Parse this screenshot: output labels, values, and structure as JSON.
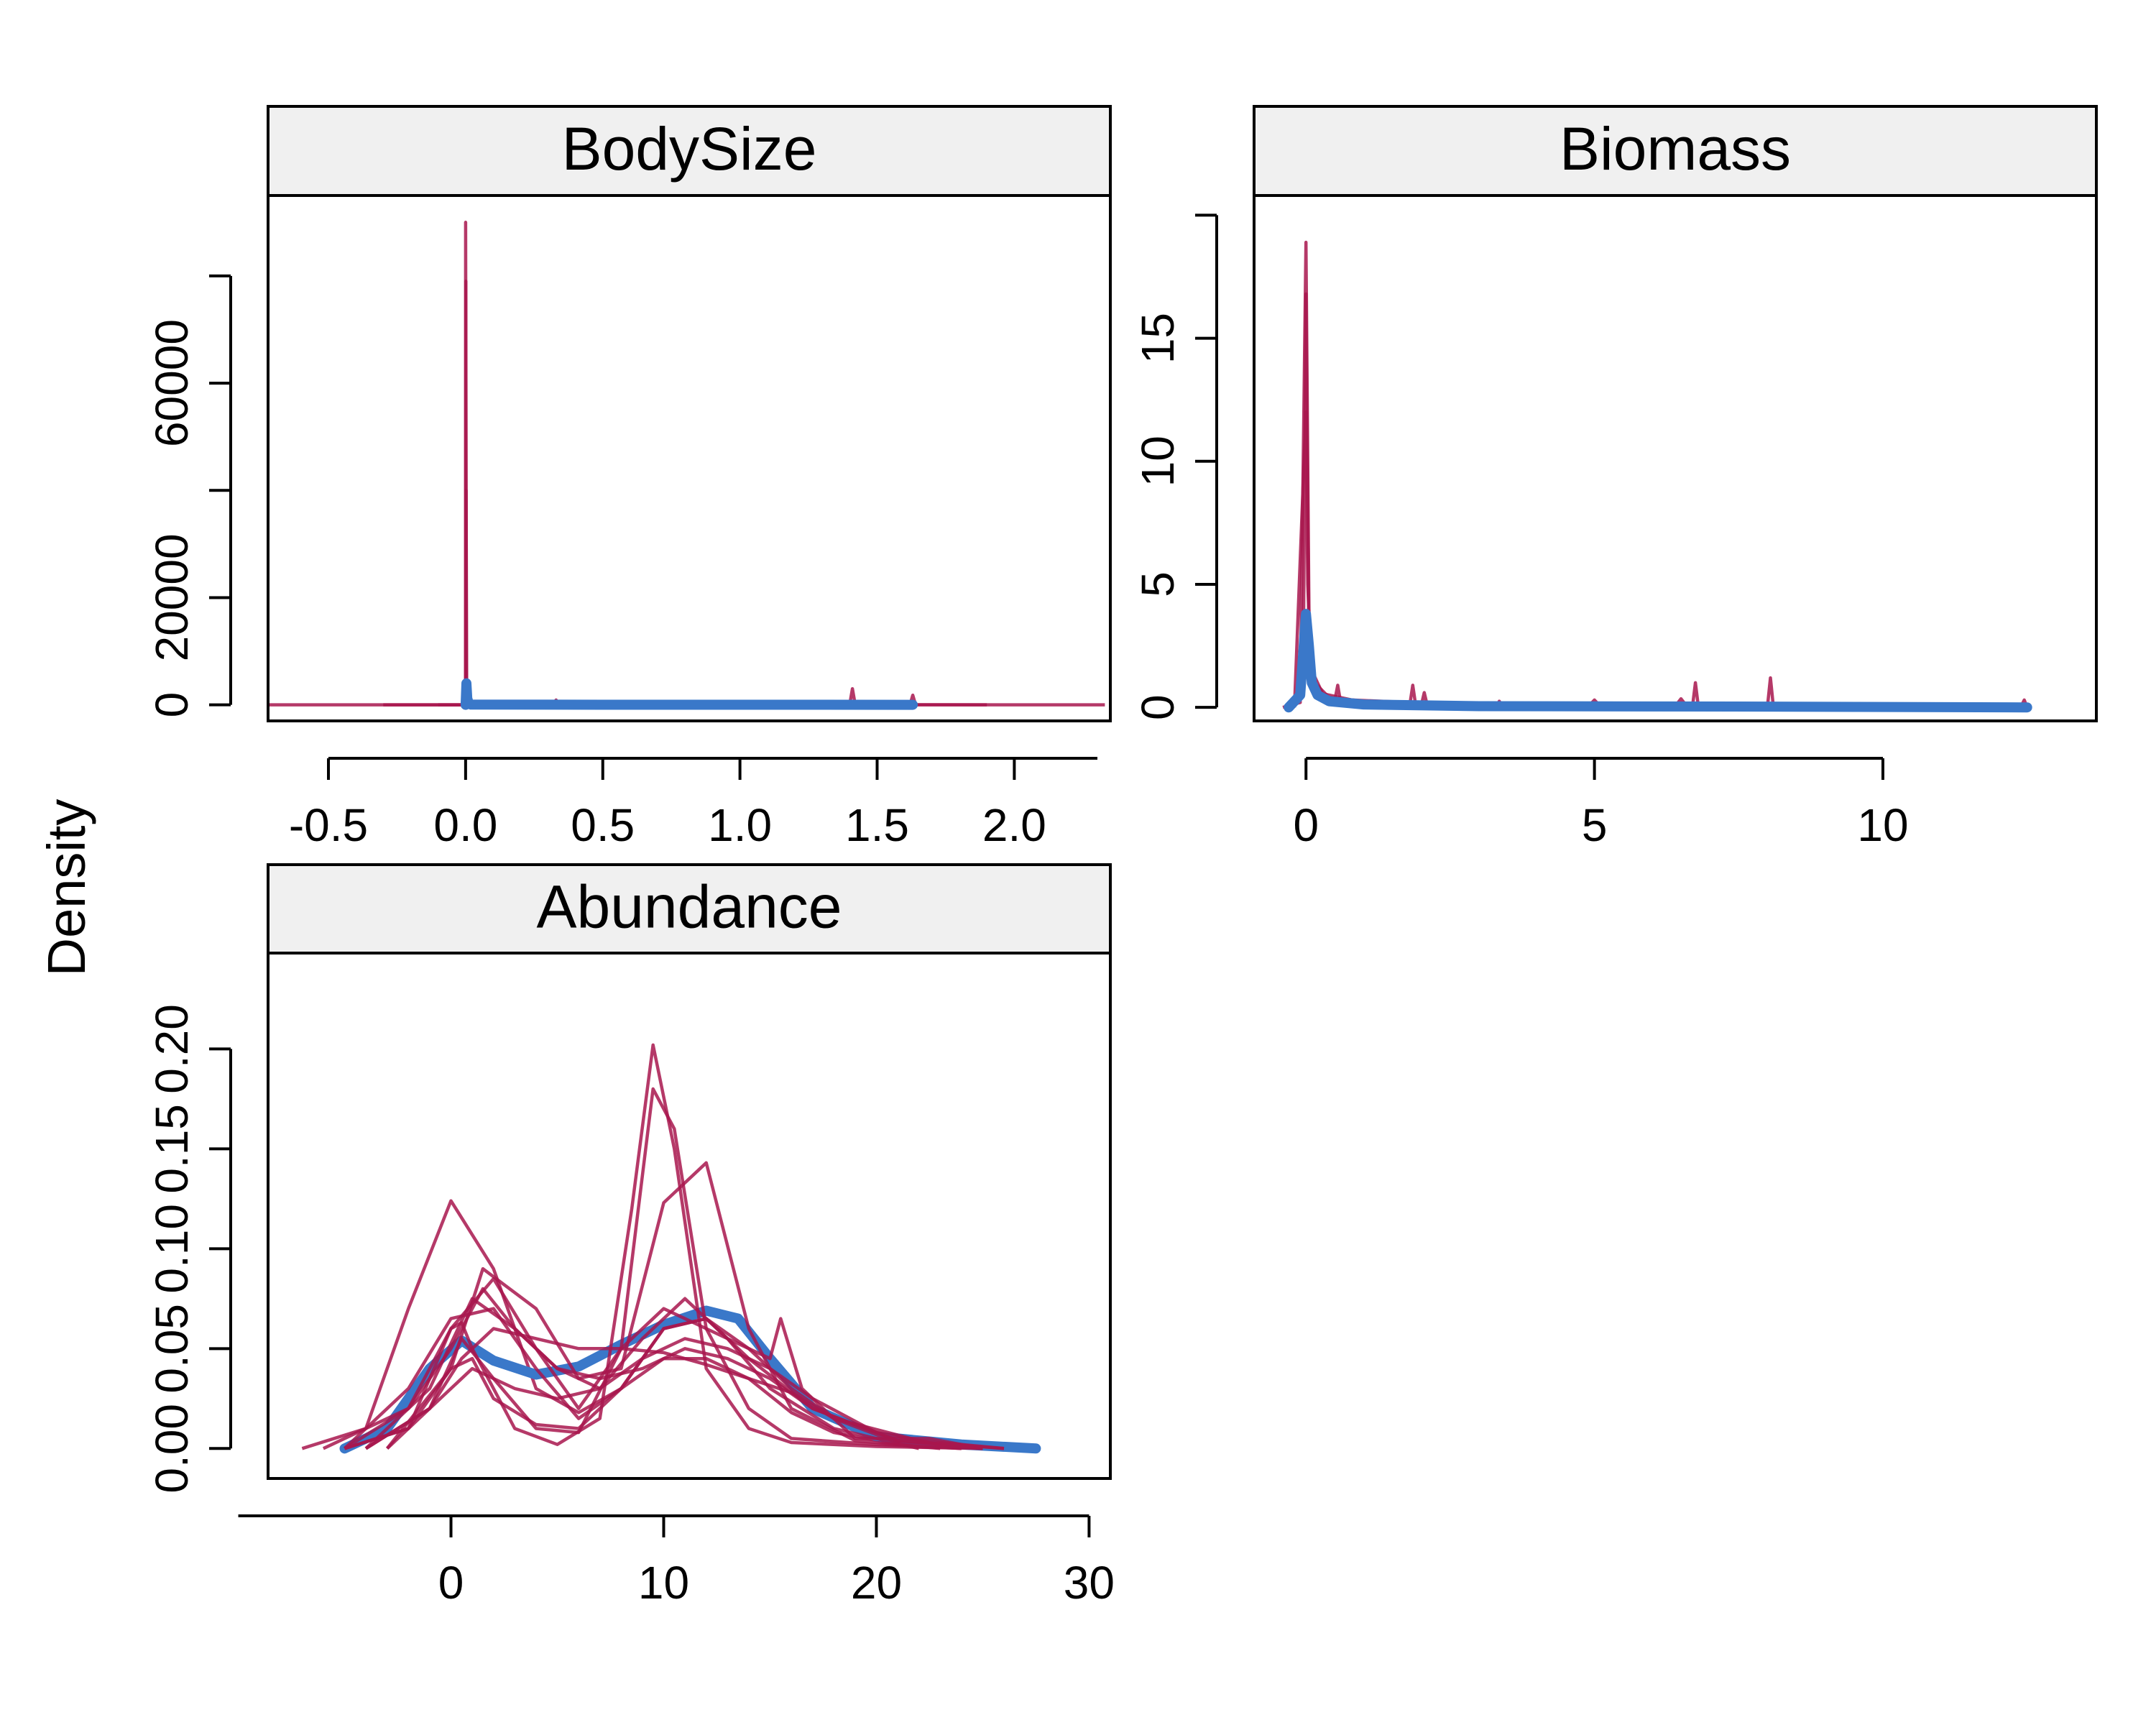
{
  "ylabel": "Density",
  "colors": {
    "observed": "#3a78c9",
    "replicated": "#a8164e",
    "strip": "#f0f0f0"
  },
  "chart_data": [
    {
      "type": "line",
      "title": "BodySize",
      "xlim": [
        -0.72,
        2.35
      ],
      "ylim": [
        -3000,
        95000
      ],
      "xticks": [
        -0.5,
        0.0,
        0.5,
        1.0,
        1.5,
        2.0
      ],
      "xtick_labels": [
        "-0.5",
        "0.0",
        "0.5",
        "1.0",
        "1.5",
        "2.0"
      ],
      "yticks": [
        0,
        20000,
        40000,
        60000,
        80000
      ],
      "ytick_labels": [
        "0",
        "20000",
        "",
        "60000",
        ""
      ],
      "observed": {
        "x": [
          0.0,
          0.003,
          0.006,
          0.012,
          0.02,
          0.5,
          1.0,
          1.63
        ],
        "y": [
          0,
          4000,
          1200,
          200,
          40,
          20,
          15,
          0
        ]
      },
      "replicates": [
        {
          "x": [
            -0.72,
            -0.3,
            0.0,
            0.0,
            0.003,
            0.006,
            0.02,
            0.5,
            1.4,
            1.41,
            1.42,
            2.0,
            2.33
          ],
          "y": [
            0,
            0,
            0,
            90000,
            500,
            60,
            30,
            20,
            10,
            3000,
            10,
            0,
            0
          ]
        },
        {
          "x": [
            -0.3,
            0.0,
            0.001,
            0.002,
            0.01,
            1.62,
            1.63,
            1.64,
            1.9
          ],
          "y": [
            0,
            0,
            79000,
            300,
            30,
            10,
            1800,
            10,
            0
          ]
        },
        {
          "x": [
            -0.1,
            0.0,
            0.002,
            0.004,
            0.03,
            0.32,
            0.33,
            0.34,
            1.2,
            1.5
          ],
          "y": [
            0,
            0,
            40000,
            200,
            20,
            10,
            900,
            10,
            10,
            0
          ]
        }
      ]
    },
    {
      "type": "line",
      "title": "Biomass",
      "xlim": [
        -0.9,
        13.7
      ],
      "ylim": [
        -0.55,
        20.8
      ],
      "xticks": [
        0,
        5,
        10
      ],
      "xtick_labels": [
        "0",
        "5",
        "10"
      ],
      "yticks": [
        0,
        5,
        10,
        15,
        20
      ],
      "ytick_labels": [
        "0",
        "5",
        "10",
        "15",
        ""
      ],
      "observed": {
        "x": [
          -0.3,
          -0.1,
          0.0,
          0.05,
          0.1,
          0.2,
          0.4,
          1.0,
          3.0,
          8.0,
          12.5
        ],
        "y": [
          0,
          0.5,
          3.8,
          2.5,
          1.0,
          0.5,
          0.25,
          0.12,
          0.05,
          0.03,
          0.0
        ]
      },
      "replicates": [
        {
          "x": [
            -0.4,
            -0.1,
            0.0,
            0.05,
            0.1,
            0.3,
            0.5,
            0.55,
            0.6,
            1.0,
            1.8,
            1.85,
            1.9,
            3.0,
            6.7,
            6.75,
            6.8,
            8.0,
            8.05,
            8.1,
            12.4,
            12.45,
            12.5
          ],
          "y": [
            0,
            0.2,
            18.9,
            4.0,
            1.5,
            0.5,
            0.3,
            0.9,
            0.2,
            0.1,
            0.1,
            0.9,
            0.1,
            0.05,
            0.05,
            1.0,
            0.05,
            0.05,
            1.2,
            0.05,
            0.05,
            0.3,
            0
          ]
        },
        {
          "x": [
            -0.3,
            -0.05,
            0.0,
            0.05,
            0.15,
            0.4,
            1.2,
            2.0,
            2.05,
            2.1,
            4.9,
            5.0,
            5.1,
            6.4,
            6.5,
            6.6,
            12.0
          ],
          "y": [
            0,
            0.5,
            16.8,
            3.0,
            1.0,
            0.4,
            0.2,
            0.1,
            0.6,
            0.1,
            0.05,
            0.3,
            0.05,
            0.05,
            0.35,
            0.05,
            0
          ]
        },
        {
          "x": [
            -0.2,
            0.0,
            0.03,
            0.08,
            0.2,
            0.8,
            3.3,
            3.35,
            3.4,
            9.0
          ],
          "y": [
            0,
            12.0,
            5.0,
            2.0,
            0.6,
            0.3,
            0.05,
            0.25,
            0.05,
            0
          ]
        }
      ]
    },
    {
      "type": "line",
      "title": "Abundance",
      "xlim": [
        -8.6,
        31.0
      ],
      "ylim": [
        -0.015,
        0.248
      ],
      "xticks": [
        0,
        10,
        20,
        30
      ],
      "xtick_labels": [
        "0",
        "10",
        "20",
        "30"
      ],
      "yticks": [
        0.0,
        0.05,
        0.1,
        0.15,
        0.2
      ],
      "ytick_labels": [
        "0.00",
        "0.05",
        "0.10",
        "0.15",
        "0.20"
      ],
      "observed": {
        "x": [
          -5,
          -3,
          -1,
          0.5,
          2,
          4,
          6,
          8,
          10,
          12,
          13.5,
          15,
          17,
          20,
          24,
          27.5
        ],
        "y": [
          0,
          0.01,
          0.04,
          0.054,
          0.044,
          0.037,
          0.041,
          0.052,
          0.062,
          0.069,
          0.065,
          0.045,
          0.02,
          0.006,
          0.002,
          0
        ]
      },
      "replicates": [
        {
          "x": [
            -7,
            -4,
            -2,
            0,
            2,
            4,
            6,
            8,
            10,
            12,
            14,
            16,
            18,
            21,
            24
          ],
          "y": [
            0,
            0.01,
            0.07,
            0.124,
            0.09,
            0.03,
            0.018,
            0.03,
            0.045,
            0.045,
            0.035,
            0.018,
            0.008,
            0.002,
            0
          ]
        },
        {
          "x": [
            -5,
            -2,
            0,
            0.5,
            1,
            3,
            5,
            7,
            8.5,
            9.5,
            10.5,
            12,
            14,
            16,
            20,
            25
          ],
          "y": [
            0,
            0.01,
            0.06,
            0.063,
            0.05,
            0.01,
            0.002,
            0.015,
            0.12,
            0.202,
            0.15,
            0.04,
            0.01,
            0.003,
            0.001,
            0
          ]
        },
        {
          "x": [
            -4,
            -1,
            0.5,
            2,
            4,
            6,
            8,
            9.5,
            10.5,
            12,
            14,
            16,
            20,
            24
          ],
          "y": [
            0,
            0.02,
            0.055,
            0.035,
            0.01,
            0.008,
            0.05,
            0.18,
            0.16,
            0.06,
            0.02,
            0.005,
            0.002,
            0
          ]
        },
        {
          "x": [
            -3,
            0,
            1.5,
            4,
            6,
            8,
            10,
            12,
            14,
            16,
            19,
            23
          ],
          "y": [
            0,
            0.04,
            0.09,
            0.07,
            0.035,
            0.04,
            0.123,
            0.143,
            0.06,
            0.02,
            0.004,
            0
          ]
        },
        {
          "x": [
            -6,
            -2,
            0,
            2,
            4,
            6,
            8,
            10,
            12,
            15,
            15.5,
            16.5,
            19,
            22.5,
            25
          ],
          "y": [
            0,
            0.02,
            0.06,
            0.085,
            0.05,
            0.02,
            0.05,
            0.07,
            0.06,
            0.045,
            0.065,
            0.03,
            0.005,
            0.005,
            0
          ]
        },
        {
          "x": [
            -5,
            -2,
            0,
            1.5,
            3,
            5,
            7,
            9,
            11,
            13,
            15,
            17,
            20,
            24
          ],
          "y": [
            0,
            0.02,
            0.05,
            0.08,
            0.06,
            0.04,
            0.03,
            0.045,
            0.055,
            0.05,
            0.04,
            0.025,
            0.008,
            0
          ]
        },
        {
          "x": [
            -4,
            -1,
            0.5,
            2,
            4,
            6,
            8,
            10,
            12,
            14,
            16,
            18,
            21,
            25
          ],
          "y": [
            0,
            0.02,
            0.045,
            0.06,
            0.055,
            0.05,
            0.05,
            0.048,
            0.042,
            0.035,
            0.028,
            0.015,
            0.003,
            0
          ]
        },
        {
          "x": [
            -5,
            -2,
            0,
            2,
            4,
            6,
            8,
            10,
            12,
            14,
            16,
            18,
            22,
            26
          ],
          "y": [
            0,
            0.03,
            0.065,
            0.07,
            0.04,
            0.015,
            0.03,
            0.06,
            0.065,
            0.05,
            0.03,
            0.015,
            0.004,
            0
          ]
        },
        {
          "x": [
            -3,
            0,
            1,
            3,
            5,
            7,
            9,
            11,
            13,
            15,
            18,
            22
          ],
          "y": [
            0,
            0.03,
            0.04,
            0.03,
            0.025,
            0.03,
            0.055,
            0.075,
            0.055,
            0.03,
            0.01,
            0
          ]
        },
        {
          "x": [
            -4,
            -1,
            1,
            3,
            5,
            7,
            9,
            11,
            13,
            15,
            17,
            21,
            25
          ],
          "y": [
            0,
            0.03,
            0.075,
            0.06,
            0.04,
            0.035,
            0.04,
            0.05,
            0.045,
            0.035,
            0.02,
            0.004,
            0
          ]
        },
        {
          "x": [
            -5,
            -2,
            0,
            1,
            2,
            4,
            6,
            8,
            10,
            12,
            14,
            17,
            21,
            26
          ],
          "y": [
            0,
            0.01,
            0.04,
            0.045,
            0.025,
            0.012,
            0.01,
            0.03,
            0.06,
            0.065,
            0.045,
            0.02,
            0.004,
            0
          ]
        }
      ]
    }
  ]
}
